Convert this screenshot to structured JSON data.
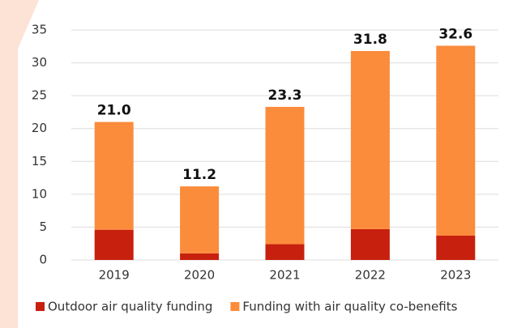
{
  "chart_data": {
    "type": "stacked_bar",
    "categories": [
      "2019",
      "2020",
      "2021",
      "2022",
      "2023"
    ],
    "series": [
      {
        "name": "Outdoor air quality funding",
        "color": "#c8200e",
        "values": [
          4.6,
          1.0,
          2.4,
          4.7,
          3.7
        ]
      },
      {
        "name": "Funding with air quality co-benefits",
        "color": "#fb8c3c",
        "values": [
          16.4,
          10.2,
          20.9,
          27.1,
          28.9
        ]
      }
    ],
    "totals": [
      21.0,
      11.2,
      23.3,
      31.8,
      32.6
    ],
    "total_labels": [
      "21.0",
      "11.2",
      "23.3",
      "31.8",
      "32.6"
    ],
    "ylim": [
      0,
      35
    ],
    "yticks": [
      0,
      5,
      10,
      15,
      20,
      25,
      30,
      35
    ],
    "grid": true,
    "legend": "bottom"
  }
}
